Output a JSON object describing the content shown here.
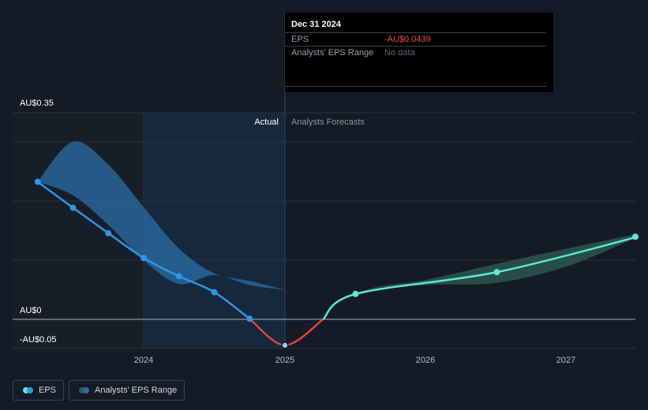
{
  "chart_data": {
    "type": "line",
    "y_axis_labels": [
      "AU$0.35",
      "AU$0",
      "-AU$0.05"
    ],
    "x_ticks": [
      2024,
      2025,
      2026,
      2027
    ],
    "region_labels": {
      "actual": "Actual",
      "forecast": "Analysts Forecasts"
    },
    "series": [
      {
        "name": "EPS",
        "segment": "actual",
        "points": [
          {
            "x": 2023.25,
            "y": 0.233
          },
          {
            "x": 2023.5,
            "y": 0.189
          },
          {
            "x": 2023.75,
            "y": 0.146
          },
          {
            "x": 2024.0,
            "y": 0.104
          },
          {
            "x": 2024.25,
            "y": 0.073
          },
          {
            "x": 2024.5,
            "y": 0.046
          },
          {
            "x": 2024.75,
            "y": 0.001
          },
          {
            "x": 2025.0,
            "y": -0.0439
          }
        ]
      },
      {
        "name": "EPS",
        "segment": "forecast",
        "points": [
          {
            "x": 2025.0,
            "y": -0.0439
          },
          {
            "x": 2025.5,
            "y": 0.043
          },
          {
            "x": 2026.5,
            "y": 0.08
          },
          {
            "x": 2027.5,
            "y": 0.14
          }
        ]
      }
    ],
    "range_band": {
      "name": "Analysts' EPS Range",
      "past": {
        "x": [
          2023.25,
          2023.5,
          2023.75,
          2024.0,
          2024.25,
          2024.5,
          2024.75,
          2025.0
        ],
        "low": [
          0.233,
          0.21,
          0.16,
          0.1,
          0.06,
          0.075,
          0.058,
          0.05
        ],
        "high": [
          0.233,
          0.301,
          0.262,
          0.19,
          0.12,
          0.078,
          0.065,
          0.05
        ]
      },
      "forecast": {
        "x": [
          2025.0,
          2025.5,
          2026.0,
          2026.5,
          2027.0,
          2027.5
        ],
        "low": [
          -0.0439,
          0.043,
          0.058,
          0.062,
          0.09,
          0.14
        ],
        "high": [
          -0.0439,
          0.043,
          0.067,
          0.094,
          0.12,
          0.145
        ]
      }
    },
    "ylim": [
      -0.05,
      0.35
    ],
    "xlim": [
      2023.0,
      2027.5
    ],
    "colors": {
      "eps_actual": "#2d96e6",
      "eps_forecast": "#5ce8d6",
      "eps_negative": "#e0443d",
      "band_past": "#2a6ea6",
      "band_forecast": "#2e5f58",
      "actual_shade": "#16283c"
    },
    "grid": true
  },
  "tooltip": {
    "date": "Dec 31 2024",
    "eps_label": "EPS",
    "eps_value": "-AU$0.0439",
    "eps_value_color": "#ee4b4b",
    "range_label": "Analysts' EPS Range",
    "range_value": "No data"
  },
  "legend": {
    "eps_label": "EPS",
    "range_label": "Analysts' EPS Range"
  }
}
